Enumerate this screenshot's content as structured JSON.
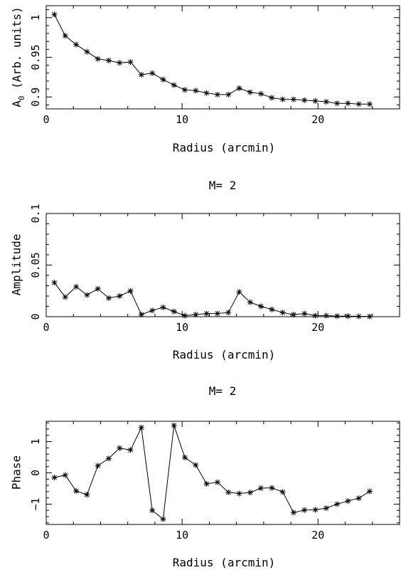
{
  "chart_data": [
    {
      "type": "line",
      "title": "",
      "xlabel": "Radius (arcmin)",
      "ylabel": "A",
      "ylabel_sub": "0",
      "ylabel_rest": " (Arb. units)",
      "xlim": [
        0,
        26
      ],
      "ylim": [
        0.885,
        1.015
      ],
      "xticks": [
        0,
        10,
        20
      ],
      "yticks": [
        0.9,
        0.95,
        1
      ],
      "ytick_labels": [
        "0.9",
        "0.95",
        "1"
      ],
      "marker": "asterisk",
      "series": [
        {
          "x": [
            0.6,
            1.4,
            2.2,
            3.0,
            3.8,
            4.6,
            5.4,
            6.2,
            7.0,
            7.8,
            8.6,
            9.4,
            10.2,
            11.0,
            11.8,
            12.6,
            13.4,
            14.2,
            15.0,
            15.8,
            16.6,
            17.4,
            18.2,
            19.0,
            19.8,
            20.6,
            21.4,
            22.2,
            23.0,
            23.8
          ],
          "y": [
            1.004,
            0.977,
            0.966,
            0.957,
            0.948,
            0.946,
            0.943,
            0.944,
            0.928,
            0.93,
            0.922,
            0.915,
            0.909,
            0.908,
            0.905,
            0.903,
            0.903,
            0.911,
            0.906,
            0.904,
            0.899,
            0.897,
            0.897,
            0.896,
            0.895,
            0.894,
            0.892,
            0.892,
            0.891,
            0.891
          ]
        }
      ]
    },
    {
      "type": "line",
      "title": "M= 2",
      "xlabel": "Radius (arcmin)",
      "ylabel": "Amplitude",
      "xlim": [
        0,
        26
      ],
      "ylim": [
        0,
        0.1
      ],
      "xticks": [
        0,
        10,
        20
      ],
      "yticks": [
        0,
        0.05,
        0.1
      ],
      "ytick_labels": [
        "0",
        "0.05",
        "0.1"
      ],
      "marker": "asterisk",
      "series": [
        {
          "x": [
            0.6,
            1.4,
            2.2,
            3.0,
            3.8,
            4.6,
            5.4,
            6.2,
            7.0,
            7.8,
            8.6,
            9.4,
            10.2,
            11.0,
            11.8,
            12.6,
            13.4,
            14.2,
            15.0,
            15.8,
            16.6,
            17.4,
            18.2,
            19.0,
            19.8,
            20.6,
            21.4,
            22.2,
            23.0,
            23.8
          ],
          "y": [
            0.033,
            0.019,
            0.029,
            0.021,
            0.027,
            0.018,
            0.02,
            0.025,
            0.002,
            0.006,
            0.009,
            0.005,
            0.001,
            0.002,
            0.003,
            0.003,
            0.004,
            0.024,
            0.014,
            0.01,
            0.007,
            0.004,
            0.002,
            0.003,
            0.001,
            0.001,
            0.0005,
            0.0005,
            0.0003,
            0.0002
          ]
        }
      ]
    },
    {
      "type": "line",
      "title": "M= 2",
      "xlabel": "Radius (arcmin)",
      "ylabel": "Phase",
      "xlim": [
        0,
        26
      ],
      "ylim": [
        -1.65,
        1.65
      ],
      "xticks": [
        0,
        10,
        20
      ],
      "yticks": [
        -1,
        0,
        1
      ],
      "ytick_labels": [
        "−1",
        "0",
        "1"
      ],
      "marker": "asterisk",
      "series": [
        {
          "x": [
            0.6,
            1.4,
            2.2,
            3.0,
            3.8,
            4.6,
            5.4,
            6.2,
            7.0,
            7.8,
            8.6,
            9.4,
            10.2,
            11.0,
            11.8,
            12.6,
            13.4,
            14.2,
            15.0,
            15.8,
            16.6,
            17.4,
            18.2,
            19.0,
            19.8,
            20.6,
            21.4,
            22.2,
            23.0,
            23.8
          ],
          "y": [
            -0.15,
            -0.07,
            -0.58,
            -0.7,
            0.23,
            0.46,
            0.79,
            0.73,
            1.45,
            -1.2,
            -1.48,
            1.52,
            0.49,
            0.25,
            -0.35,
            -0.3,
            -0.62,
            -0.66,
            -0.63,
            -0.49,
            -0.48,
            -0.61,
            -1.27,
            -1.19,
            -1.18,
            -1.13,
            -1.0,
            -0.9,
            -0.81,
            -0.59
          ]
        }
      ]
    }
  ]
}
